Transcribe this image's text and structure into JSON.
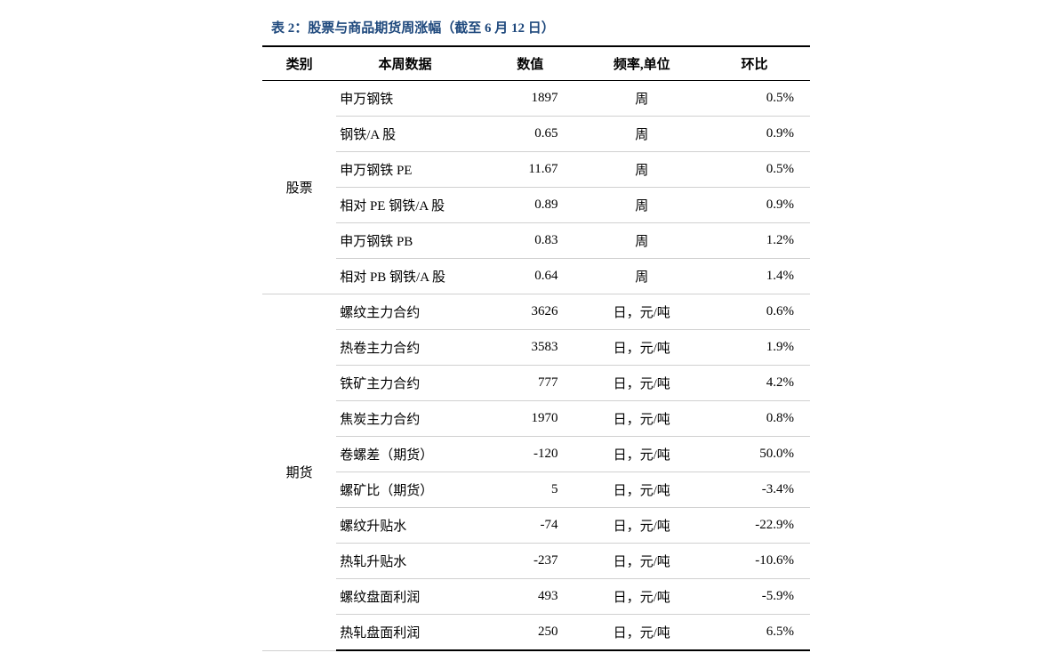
{
  "title": "表 2：股票与商品期货周涨幅（截至 6 月 12 日）",
  "title_color": "#1f497d",
  "columns": {
    "category": "类别",
    "name": "本周数据",
    "value": "数值",
    "freq": "频率,单位",
    "change": "环比"
  },
  "groups": [
    {
      "category": "股票",
      "rows": [
        {
          "name": "申万钢铁",
          "value": "1897",
          "freq": "周",
          "change": "0.5%"
        },
        {
          "name": "钢铁/A 股",
          "value": "0.65",
          "freq": "周",
          "change": "0.9%"
        },
        {
          "name": "申万钢铁 PE",
          "value": "11.67",
          "freq": "周",
          "change": "0.5%"
        },
        {
          "name": "相对 PE 钢铁/A 股",
          "value": "0.89",
          "freq": "周",
          "change": "0.9%"
        },
        {
          "name": "申万钢铁 PB",
          "value": "0.83",
          "freq": "周",
          "change": "1.2%"
        },
        {
          "name": "相对 PB 钢铁/A 股",
          "value": "0.64",
          "freq": "周",
          "change": "1.4%"
        }
      ]
    },
    {
      "category": "期货",
      "rows": [
        {
          "name": "螺纹主力合约",
          "value": "3626",
          "freq": "日，元/吨",
          "change": "0.6%"
        },
        {
          "name": "热卷主力合约",
          "value": "3583",
          "freq": "日，元/吨",
          "change": "1.9%"
        },
        {
          "name": "铁矿主力合约",
          "value": "777",
          "freq": "日，元/吨",
          "change": "4.2%"
        },
        {
          "name": "焦炭主力合约",
          "value": "1970",
          "freq": "日，元/吨",
          "change": "0.8%"
        },
        {
          "name": "卷螺差（期货）",
          "value": "-120",
          "freq": "日，元/吨",
          "change": "50.0%"
        },
        {
          "name": "螺矿比（期货）",
          "value": "5",
          "freq": "日，元/吨",
          "change": "-3.4%"
        },
        {
          "name": "螺纹升贴水",
          "value": "-74",
          "freq": "日，元/吨",
          "change": "-22.9%"
        },
        {
          "name": "热轧升贴水",
          "value": "-237",
          "freq": "日，元/吨",
          "change": "-10.6%"
        },
        {
          "name": "螺纹盘面利润",
          "value": "493",
          "freq": "日，元/吨",
          "change": "-5.9%"
        },
        {
          "name": "热轧盘面利润",
          "value": "250",
          "freq": "日，元/吨",
          "change": "6.5%"
        }
      ]
    }
  ],
  "style": {
    "border_strong": "#000000",
    "border_light": "#d0d0d0",
    "font_size_title": 15,
    "font_size_cell": 15,
    "background": "#ffffff"
  }
}
